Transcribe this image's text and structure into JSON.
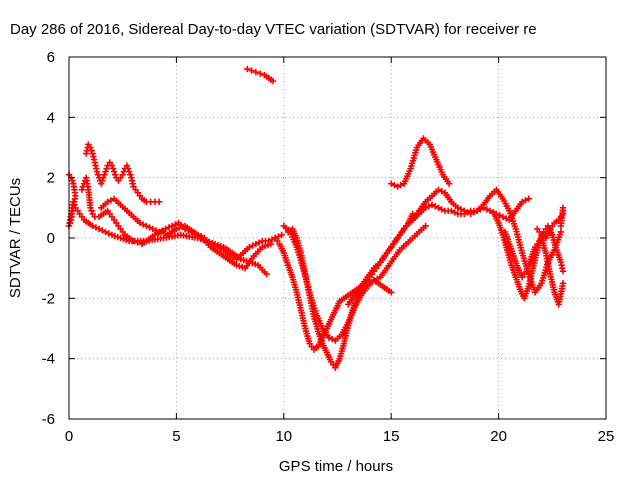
{
  "chart_data": {
    "type": "scatter",
    "title": "Day 286 of 2016, Sidereal Day-to-day VTEC variation (SDTVAR) for receiver re",
    "xlabel": "GPS time / hours",
    "ylabel": "SDTVAR / TECUs",
    "xlim": [
      0,
      25
    ],
    "ylim": [
      -6,
      6
    ],
    "xticks": [
      0,
      5,
      10,
      15,
      20,
      25
    ],
    "yticks": [
      -6,
      -4,
      -2,
      0,
      2,
      4,
      6
    ],
    "xtick_labels": [
      "0",
      "5",
      "10",
      "15",
      "20",
      "25"
    ],
    "ytick_labels": [
      "-6",
      "-4",
      "-2",
      "0",
      "2",
      "4",
      "6"
    ],
    "grid": true,
    "marker": "plus",
    "color": "#ff0000",
    "series": [
      {
        "x": [
          0.0,
          0.1,
          0.2,
          0.3,
          0.2,
          0.1,
          0.0,
          0.1,
          0.2,
          0.3,
          0.5,
          0.7,
          0.9,
          1.1,
          1.4,
          1.7,
          2.0,
          2.4,
          2.8,
          3.2,
          3.6,
          4.0,
          4.4,
          4.8,
          5.2,
          5.6,
          6.0,
          6.4,
          6.8,
          7.2,
          7.6,
          8.0,
          8.4,
          8.8,
          9.2
        ],
        "y": [
          2.1,
          2.0,
          1.8,
          1.4,
          1.0,
          0.6,
          0.4,
          0.8,
          1.2,
          1.0,
          0.8,
          0.6,
          0.5,
          0.4,
          0.3,
          0.2,
          0.1,
          0.0,
          -0.1,
          -0.1,
          -0.1,
          -0.05,
          0.0,
          0.05,
          0.1,
          0.05,
          0.0,
          -0.1,
          -0.2,
          -0.3,
          -0.5,
          -0.7,
          -0.8,
          -0.9,
          -1.2
        ]
      },
      {
        "x": [
          0.8,
          0.9,
          1.0,
          1.1,
          1.2,
          1.3,
          1.4,
          1.5,
          1.6,
          1.7,
          1.8,
          1.9,
          2.0,
          2.1,
          2.2,
          2.3,
          2.4,
          2.5,
          2.6,
          2.7,
          2.8,
          2.9,
          3.0,
          3.2,
          3.4,
          3.6,
          3.8,
          4.0,
          4.2
        ],
        "y": [
          2.8,
          3.1,
          3.0,
          2.8,
          2.5,
          2.2,
          2.0,
          1.8,
          2.0,
          2.2,
          2.4,
          2.5,
          2.4,
          2.2,
          2.0,
          1.9,
          2.0,
          2.1,
          2.3,
          2.4,
          2.2,
          2.0,
          1.7,
          1.5,
          1.3,
          1.2,
          1.2,
          1.2,
          1.2
        ]
      },
      {
        "x": [
          0.6,
          0.7,
          0.8,
          0.9,
          1.0,
          1.1,
          1.2,
          1.4,
          1.6,
          1.8,
          2.0,
          2.2,
          2.4,
          2.6,
          2.8,
          3.0,
          3.2,
          3.4,
          3.6,
          3.8,
          4.0,
          4.3,
          4.6,
          5.0,
          5.4,
          5.8,
          6.2,
          6.6,
          7.0,
          7.4,
          7.8,
          8.2,
          8.6,
          9.0,
          9.4
        ],
        "y": [
          1.6,
          1.8,
          2.0,
          1.6,
          1.0,
          0.8,
          0.7,
          0.7,
          0.8,
          0.9,
          0.7,
          0.5,
          0.3,
          0.1,
          0.0,
          -0.1,
          -0.15,
          -0.2,
          -0.1,
          0.0,
          0.1,
          0.2,
          0.1,
          0.3,
          0.4,
          0.2,
          0.0,
          -0.3,
          -0.5,
          -0.7,
          -0.9,
          -1.0,
          -0.6,
          -0.3,
          -0.2
        ]
      },
      {
        "x": [
          1.5,
          1.8,
          2.1,
          2.4,
          2.7,
          3.0,
          3.3,
          3.6,
          3.9,
          4.2,
          4.5,
          4.8,
          5.1,
          5.4,
          5.7,
          6.0,
          6.3,
          6.6,
          6.9,
          7.2,
          7.5,
          7.8,
          8.1,
          8.4,
          8.7,
          9.0,
          9.3,
          9.6,
          9.9
        ],
        "y": [
          1.0,
          1.2,
          1.3,
          1.1,
          0.9,
          0.7,
          0.5,
          0.4,
          0.3,
          0.2,
          0.3,
          0.4,
          0.5,
          0.3,
          0.2,
          0.1,
          0.0,
          -0.2,
          -0.3,
          -0.4,
          -0.6,
          -0.7,
          -0.5,
          -0.3,
          -0.2,
          -0.1,
          -0.1,
          0.0,
          0.1
        ]
      },
      {
        "x": [
          8.3,
          8.5,
          8.7,
          8.9,
          9.1,
          9.3,
          9.5
        ],
        "y": [
          5.6,
          5.55,
          5.5,
          5.45,
          5.4,
          5.3,
          5.2
        ]
      },
      {
        "x": [
          9.6,
          9.8,
          10.0,
          10.2,
          10.4,
          10.6,
          10.8,
          11.0,
          11.2,
          11.4,
          11.6,
          11.8,
          12.0,
          12.2,
          12.4,
          12.6,
          12.8,
          13.0,
          13.2,
          13.4,
          13.6,
          13.8,
          14.0,
          14.2,
          14.4,
          14.6,
          14.8,
          15.0
        ],
        "y": [
          0.0,
          -0.2,
          -0.5,
          -0.9,
          -1.3,
          -1.8,
          -2.4,
          -3.0,
          -3.5,
          -3.7,
          -3.6,
          -3.3,
          -3.0,
          -2.7,
          -2.4,
          -2.1,
          -2.0,
          -1.9,
          -1.8,
          -1.7,
          -1.6,
          -1.5,
          -1.4,
          -1.4,
          -1.5,
          -1.6,
          -1.7,
          -1.8
        ]
      },
      {
        "x": [
          10.2,
          10.4,
          10.6,
          10.8,
          11.0,
          11.2,
          11.4,
          11.6,
          11.8,
          12.0,
          12.2,
          12.4,
          12.6,
          12.8,
          13.0,
          13.2,
          13.4,
          13.6,
          13.8,
          14.0,
          14.2,
          14.4,
          14.6,
          14.8,
          15.0,
          15.2,
          15.4,
          15.6,
          15.8,
          16.0
        ],
        "y": [
          0.2,
          0.3,
          0.0,
          -0.5,
          -1.2,
          -1.9,
          -2.6,
          -3.1,
          -3.5,
          -3.8,
          -4.1,
          -4.3,
          -4.0,
          -3.5,
          -2.9,
          -2.4,
          -2.0,
          -1.7,
          -1.5,
          -1.3,
          -1.1,
          -0.9,
          -0.7,
          -0.5,
          -0.3,
          -0.1,
          0.1,
          0.3,
          0.5,
          0.8
        ]
      },
      {
        "x": [
          10.0,
          10.3,
          10.6,
          10.9,
          11.2,
          11.5,
          11.8,
          12.1,
          12.4,
          12.7,
          13.0,
          13.3,
          13.6,
          13.9,
          14.2,
          14.5,
          14.8,
          15.1,
          15.4,
          15.7,
          16.0,
          16.3,
          16.6
        ],
        "y": [
          0.4,
          0.2,
          -0.3,
          -1.0,
          -1.8,
          -2.5,
          -3.0,
          -3.3,
          -3.4,
          -3.2,
          -2.8,
          -2.3,
          -1.9,
          -1.6,
          -1.4,
          -1.3,
          -1.0,
          -0.7,
          -0.4,
          -0.2,
          0.0,
          0.2,
          0.4
        ]
      },
      {
        "x": [
          13.0,
          13.3,
          13.6,
          13.9,
          14.2,
          14.5,
          14.8,
          15.1,
          15.4,
          15.7,
          16.0,
          16.3,
          16.6,
          16.9,
          17.2,
          17.5,
          17.8,
          18.1,
          18.4,
          18.7,
          19.0,
          19.3,
          19.6,
          19.9,
          20.2,
          20.5,
          20.8,
          21.1,
          21.4
        ],
        "y": [
          -2.2,
          -1.9,
          -1.6,
          -1.3,
          -1.0,
          -0.8,
          -0.5,
          -0.2,
          0.1,
          0.4,
          0.6,
          0.8,
          1.0,
          1.1,
          1.0,
          0.9,
          0.9,
          0.8,
          0.8,
          0.9,
          0.9,
          1.0,
          0.9,
          0.8,
          0.7,
          0.6,
          0.9,
          1.2,
          1.3
        ]
      },
      {
        "x": [
          15.0,
          15.3,
          15.6,
          15.9,
          16.2,
          16.5,
          16.8,
          17.1,
          17.4,
          17.7
        ],
        "y": [
          1.8,
          1.7,
          1.8,
          2.3,
          3.0,
          3.3,
          3.1,
          2.6,
          2.1,
          1.8
        ]
      },
      {
        "x": [
          16.0,
          16.3,
          16.6,
          16.9,
          17.2,
          17.5,
          17.8,
          18.1,
          18.4,
          18.7,
          19.0,
          19.3,
          19.6,
          19.9,
          20.2,
          20.5,
          20.8,
          21.1,
          21.4,
          21.7,
          22.0,
          22.3,
          22.6,
          22.9
        ],
        "y": [
          0.6,
          0.9,
          1.2,
          1.4,
          1.6,
          1.5,
          1.2,
          1.0,
          0.9,
          0.8,
          0.9,
          1.1,
          1.4,
          1.6,
          1.3,
          0.9,
          0.3,
          -0.5,
          -1.2,
          -1.8,
          -1.5,
          -0.8,
          -0.4,
          0.2
        ]
      },
      {
        "x": [
          19.8,
          20.0,
          20.2,
          20.4,
          20.6,
          20.8,
          21.0,
          21.2,
          21.4,
          21.6,
          21.8,
          22.0,
          22.2,
          22.4,
          22.6,
          22.8,
          23.0
        ],
        "y": [
          0.8,
          0.5,
          0.1,
          -0.4,
          -0.9,
          -1.3,
          -1.7,
          -2.0,
          -1.6,
          -1.0,
          -0.4,
          0.0,
          -0.5,
          -1.2,
          -1.8,
          -2.2,
          -1.5
        ]
      },
      {
        "x": [
          20.3,
          20.5,
          20.7,
          20.9,
          21.1,
          21.3,
          21.5,
          21.7,
          21.9,
          22.1,
          22.3,
          22.5,
          22.7,
          22.9,
          23.0
        ],
        "y": [
          0.2,
          -0.2,
          -0.6,
          -1.0,
          -1.3,
          -1.1,
          -0.7,
          -0.3,
          -0.1,
          0.2,
          0.4,
          0.1,
          -0.4,
          -0.8,
          -1.1
        ]
      },
      {
        "x": [
          21.8,
          22.0,
          22.2,
          22.4,
          22.6,
          22.8,
          23.0,
          23.0,
          22.9
        ],
        "y": [
          0.3,
          0.1,
          0.0,
          0.3,
          0.5,
          0.6,
          0.8,
          1.0,
          0.4
        ]
      }
    ]
  }
}
